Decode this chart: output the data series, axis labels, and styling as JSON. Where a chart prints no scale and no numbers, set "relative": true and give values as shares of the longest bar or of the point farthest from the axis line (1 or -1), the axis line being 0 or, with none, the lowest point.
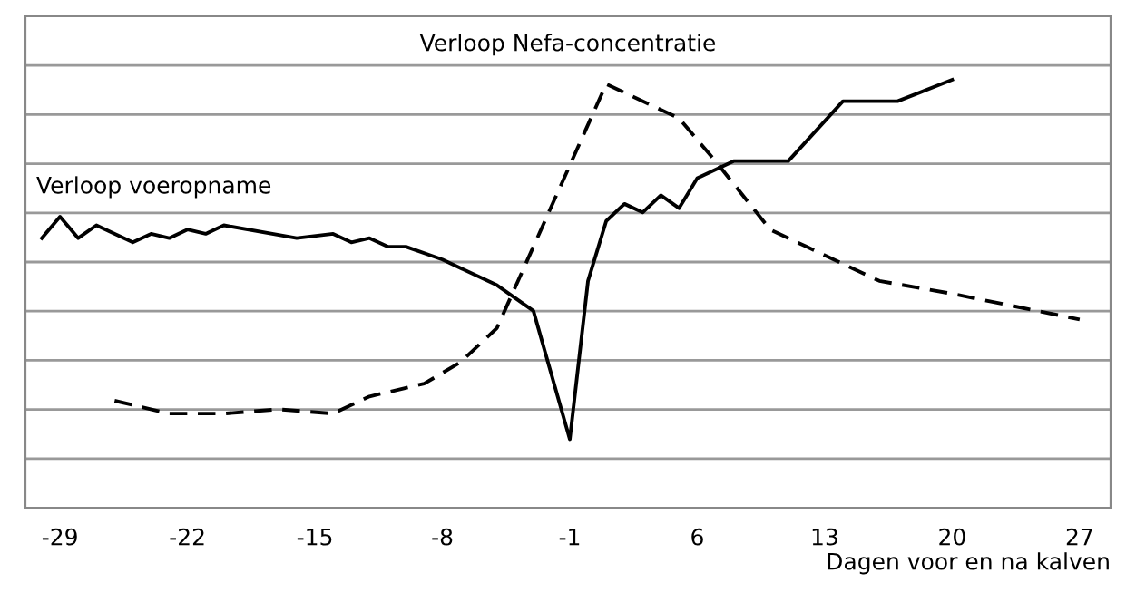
{
  "chart_data": {
    "type": "line",
    "xlabel": "Dagen voor en na kalven",
    "relative": true,
    "grid": "y",
    "tick_labels": "x",
    "marker": "none",
    "xlim": [
      -30.9,
      28.7
    ],
    "xticks": [
      -29,
      -22,
      -15,
      -8,
      -1,
      6,
      13,
      20,
      27
    ],
    "series": [
      {
        "name": "Verloop voeropname",
        "color": "#000000",
        "line_style": "solid",
        "x": [
          -30,
          -29,
          -28,
          -27,
          -25,
          -24,
          -23,
          -22,
          -21,
          -20,
          -16,
          -14,
          -13,
          -12,
          -11,
          -10,
          -8,
          -7,
          -5,
          -3,
          -1,
          0,
          1,
          2,
          3,
          4,
          5,
          6,
          8,
          11,
          14,
          17,
          20
        ],
        "values": [
          0.63,
          0.68,
          0.63,
          0.66,
          0.62,
          0.64,
          0.63,
          0.65,
          0.64,
          0.66,
          0.63,
          0.64,
          0.62,
          0.63,
          0.61,
          0.61,
          0.58,
          0.56,
          0.52,
          0.46,
          0.16,
          0.53,
          0.67,
          0.71,
          0.69,
          0.73,
          0.7,
          0.77,
          0.81,
          0.81,
          0.95,
          0.95,
          1.0
        ]
      },
      {
        "name": "Verloop Nefa-concentratie",
        "color": "#000000",
        "line_style": "dashed",
        "x": [
          -26,
          -23,
          -20,
          -17,
          -14,
          -12,
          -9,
          -7,
          -5,
          1,
          5,
          7,
          10,
          12,
          16,
          20,
          27
        ],
        "values": [
          0.25,
          0.22,
          0.22,
          0.23,
          0.22,
          0.26,
          0.29,
          0.34,
          0.42,
          0.99,
          0.91,
          0.81,
          0.65,
          0.61,
          0.53,
          0.5,
          0.44
        ]
      }
    ]
  }
}
